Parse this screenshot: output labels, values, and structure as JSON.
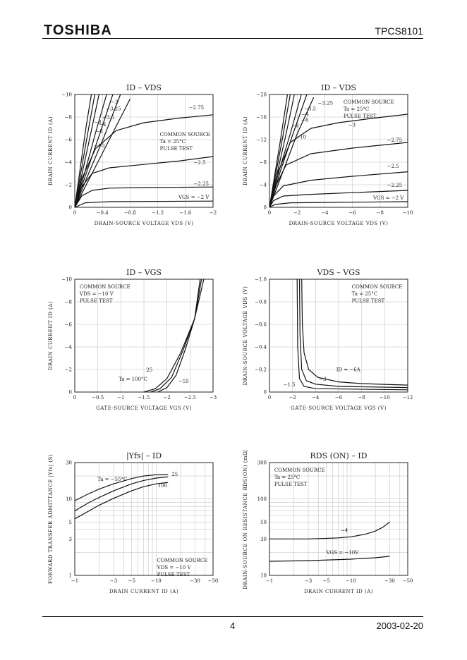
{
  "header": {
    "logo": "TOSHIBA",
    "part_number": "TPCS8101"
  },
  "footer": {
    "page_number": "4",
    "date": "2003-02-20"
  },
  "chart_data": [
    {
      "id": "c1",
      "type": "line",
      "scale": "linear",
      "title": "ID – VDS",
      "xlabel": "DRAIN-SOURCE VOLTAGE  VDS  (V)",
      "ylabel": "DRAIN CURRENT  ID  (A)",
      "xlim": [
        0,
        -2
      ],
      "ylim": [
        0,
        -10
      ],
      "xticks": [
        0,
        -0.4,
        -0.8,
        -1.2,
        -1.6,
        -2
      ],
      "xtick_labels": [
        "0",
        "−0.4",
        "−0.8",
        "−1.2",
        "−1.6",
        "−2"
      ],
      "yticks": [
        0,
        -2,
        -4,
        -6,
        -8,
        -10
      ],
      "ytick_labels": [
        "0",
        "−2",
        "−4",
        "−6",
        "−8",
        "−10"
      ],
      "notes": [
        "COMMON SOURCE",
        "Ta = 25°C",
        "PULSE TEST"
      ],
      "series": [
        {
          "name": "−10",
          "x": [
            0,
            -0.08,
            -0.16,
            -0.24
          ],
          "y": [
            0,
            -3.5,
            -7,
            -10
          ],
          "label_at": [
            -0.28,
            -5.3
          ]
        },
        {
          "name": "−8",
          "x": [
            0,
            -0.1,
            -0.2,
            -0.29
          ],
          "y": [
            0,
            -3.5,
            -7,
            -10
          ],
          "label_at": [
            -0.28,
            -7.4
          ]
        },
        {
          "name": "−6",
          "x": [
            0,
            -0.12,
            -0.24,
            -0.35
          ],
          "y": [
            0,
            -3.4,
            -6.8,
            -10
          ],
          "label_at": [
            -0.3,
            -6.6
          ]
        },
        {
          "name": "−4",
          "x": [
            0,
            -0.15,
            -0.3,
            -0.46
          ],
          "y": [
            0,
            -3.2,
            -6.6,
            -10
          ],
          "label_at": [
            -0.35,
            -7.2
          ]
        },
        {
          "name": "−3.5",
          "x": [
            0,
            -0.17,
            -0.35,
            -0.55
          ],
          "y": [
            0,
            -3.1,
            -6.3,
            -10
          ],
          "label_at": [
            -0.4,
            -7.8
          ]
        },
        {
          "name": "−3.25",
          "x": [
            0,
            -0.2,
            -0.42,
            -0.66
          ],
          "y": [
            0,
            -3,
            -6.2,
            -10
          ],
          "label_at": [
            -0.45,
            -8.6
          ]
        },
        {
          "name": "−3",
          "x": [
            0,
            -0.25,
            -0.5,
            -0.8
          ],
          "y": [
            0,
            -3,
            -6,
            -9.6
          ],
          "label_at": [
            -0.52,
            -9.2
          ]
        },
        {
          "name": "−2.75",
          "x": [
            0,
            -0.1,
            -0.3,
            -0.6,
            -1.0,
            -1.5,
            -2.0
          ],
          "y": [
            0,
            -2.5,
            -5.2,
            -6.8,
            -7.5,
            -7.9,
            -8.2
          ],
          "label_at": [
            -1.65,
            -8.7
          ]
        },
        {
          "name": "−2.5",
          "x": [
            0,
            -0.1,
            -0.25,
            -0.5,
            -1.0,
            -1.5,
            -2.0
          ],
          "y": [
            0,
            -1.8,
            -3.0,
            -3.5,
            -3.8,
            -4.1,
            -4.5
          ],
          "label_at": [
            -1.72,
            -3.8
          ]
        },
        {
          "name": "−2.25",
          "x": [
            0,
            -0.1,
            -0.25,
            -0.5,
            -1.0,
            -2.0
          ],
          "y": [
            0,
            -1.0,
            -1.5,
            -1.7,
            -1.75,
            -1.8
          ],
          "label_at": [
            -1.72,
            -1.95
          ]
        },
        {
          "name": "VGS = −2 V",
          "x": [
            0,
            -0.15,
            -0.5,
            -2.0
          ],
          "y": [
            0,
            -0.4,
            -0.5,
            -0.55
          ],
          "label_at": [
            -1.5,
            -0.75
          ]
        }
      ]
    },
    {
      "id": "c2",
      "type": "line",
      "scale": "linear",
      "title": "ID – VDS",
      "xlabel": "DRAIN-SOURCE VOLTAGE  VDS  (V)",
      "ylabel": "DRAIN CURRENT  ID  (A)",
      "xlim": [
        0,
        -10
      ],
      "ylim": [
        0,
        -20
      ],
      "xticks": [
        0,
        -2,
        -4,
        -6,
        -8,
        -10
      ],
      "xtick_labels": [
        "0",
        "−2",
        "−4",
        "−6",
        "−8",
        "−10"
      ],
      "yticks": [
        0,
        -4,
        -8,
        -12,
        -16,
        -20
      ],
      "ytick_labels": [
        "0",
        "−4",
        "−8",
        "−12",
        "−16",
        "−20"
      ],
      "notes": [
        "COMMON SOURCE",
        "Ta = 25°C",
        "PULSE TEST"
      ],
      "series": [
        {
          "name": "−10",
          "x": [
            0,
            -0.4,
            -0.8,
            -1.3
          ],
          "y": [
            0,
            -6,
            -12,
            -20
          ],
          "label_at": [
            -1.9,
            -12.2
          ]
        },
        {
          "name": "−8",
          "x": [
            0,
            -0.5,
            -1.0,
            -1.5
          ],
          "y": [
            0,
            -6.5,
            -13,
            -20
          ],
          "label_at": [
            -1.6,
            -14.2
          ]
        },
        {
          "name": "−6",
          "x": [
            0,
            -0.6,
            -1.2,
            -1.8
          ],
          "y": [
            0,
            -6.5,
            -13,
            -20
          ],
          "label_at": [
            -2.3,
            -15.2
          ]
        },
        {
          "name": "−4",
          "x": [
            0,
            -0.7,
            -1.5,
            -2.3
          ],
          "y": [
            0,
            -6.5,
            -13,
            -20
          ],
          "label_at": [
            -2.3,
            -16.2
          ]
        },
        {
          "name": "−3.5",
          "x": [
            0,
            -0.8,
            -1.7,
            -2.7
          ],
          "y": [
            0,
            -6.5,
            -13,
            -20
          ],
          "label_at": [
            -2.5,
            -17.2
          ]
        },
        {
          "name": "−3.25",
          "x": [
            0,
            -1.0,
            -2.0,
            -3.2
          ],
          "y": [
            0,
            -6.5,
            -13,
            -19.5
          ],
          "label_at": [
            -3.5,
            -18.2
          ]
        },
        {
          "name": "−3",
          "x": [
            0,
            -0.5,
            -1.5,
            -3.0,
            -5.0,
            -7.5,
            -10
          ],
          "y": [
            0,
            -5.5,
            -11.5,
            -14,
            -15,
            -15.8,
            -16.5
          ],
          "label_at": [
            -5.7,
            -14.3
          ]
        },
        {
          "name": "−2.75",
          "x": [
            0,
            -0.4,
            -1.2,
            -3.0,
            -6.0,
            -10
          ],
          "y": [
            0,
            -3.5,
            -7.5,
            -9.5,
            -10.5,
            -11.5
          ],
          "label_at": [
            -8.5,
            -11.6
          ]
        },
        {
          "name": "−2.5",
          "x": [
            0,
            -0.3,
            -1.0,
            -3.0,
            -6.0,
            -10
          ],
          "y": [
            0,
            -2.0,
            -3.8,
            -4.8,
            -5.5,
            -6.3
          ],
          "label_at": [
            -8.5,
            -7.0
          ]
        },
        {
          "name": "−2.25",
          "x": [
            0,
            -0.3,
            -1.0,
            -3.0,
            -6.0,
            -10
          ],
          "y": [
            0,
            -1.2,
            -2.0,
            -2.3,
            -2.6,
            -3.0
          ],
          "label_at": [
            -8.5,
            -3.6
          ]
        },
        {
          "name": "VGS = −2 V",
          "x": [
            0,
            -0.4,
            -1.5,
            -10
          ],
          "y": [
            0,
            -0.5,
            -0.8,
            -1.0
          ],
          "label_at": [
            -7.5,
            -1.4
          ]
        }
      ]
    },
    {
      "id": "c3",
      "type": "line",
      "scale": "linear",
      "title": "ID – VGS",
      "xlabel": "GATE-SOURCE VOLTAGE  VGS  (V)",
      "ylabel": "DRAIN CURRENT  ID  (A)",
      "xlim": [
        0,
        -3
      ],
      "ylim": [
        0,
        -10
      ],
      "xticks": [
        0,
        -0.5,
        -1,
        -1.5,
        -2,
        -2.5,
        -3
      ],
      "xtick_labels": [
        "0",
        "−0.5",
        "−1",
        "−1.5",
        "−2",
        "−2.5",
        "−3"
      ],
      "yticks": [
        0,
        -2,
        -4,
        -6,
        -8,
        -10
      ],
      "ytick_labels": [
        "0",
        "−2",
        "−4",
        "−6",
        "−8",
        "−10"
      ],
      "notes": [
        "COMMON SOURCE",
        "VDS = −10 V",
        "PULSE TEST"
      ],
      "series": [
        {
          "name": "Ta = 100°C",
          "x": [
            -1.5,
            -1.75,
            -2.0,
            -2.3,
            -2.6,
            -2.8
          ],
          "y": [
            0,
            -0.3,
            -1.2,
            -3.5,
            -6.5,
            -10
          ],
          "label_at": [
            -0.95,
            -1.0
          ]
        },
        {
          "name": "25",
          "x": [
            -1.65,
            -1.85,
            -2.1,
            -2.35,
            -2.6,
            -2.75
          ],
          "y": [
            0,
            -0.3,
            -1.3,
            -3.7,
            -6.5,
            -10
          ],
          "label_at": [
            -1.55,
            -1.8
          ]
        },
        {
          "name": "−55",
          "x": [
            -1.8,
            -2.0,
            -2.2,
            -2.4,
            -2.6,
            -2.72
          ],
          "y": [
            0,
            -0.4,
            -1.5,
            -3.8,
            -6.5,
            -10
          ],
          "label_at": [
            -2.25,
            -0.8
          ]
        }
      ]
    },
    {
      "id": "c4",
      "type": "line",
      "scale": "linear",
      "title": "VDS – VGS",
      "xlabel": "GATE-SOURCE VOLTAGE  VGS  (V)",
      "ylabel": "DRAIN-SOURCE VOLTAGE  VDS  (V)",
      "xlim": [
        0,
        -12
      ],
      "ylim": [
        0,
        -1
      ],
      "xticks": [
        0,
        -2,
        -4,
        -6,
        -8,
        -10,
        -12
      ],
      "xtick_labels": [
        "0",
        "−2",
        "−4",
        "−6",
        "−8",
        "−10",
        "−12"
      ],
      "yticks": [
        0,
        -0.2,
        -0.4,
        -0.6,
        -0.8,
        -1.0
      ],
      "ytick_labels": [
        "0",
        "−0.2",
        "−0.4",
        "−0.6",
        "−0.8",
        "−1.0"
      ],
      "notes": [
        "COMMON SOURCE",
        "Ta = 25°C",
        "PULSE TEST"
      ],
      "series": [
        {
          "name": "ID = −6A",
          "x": [
            -2.8,
            -2.85,
            -3.0,
            -3.4,
            -4.2,
            -6.0,
            -8.0,
            -10.0,
            -12.0
          ],
          "y": [
            -1.0,
            -0.6,
            -0.35,
            -0.2,
            -0.13,
            -0.09,
            -0.075,
            -0.068,
            -0.062
          ],
          "label_at": [
            -5.8,
            -0.185
          ]
        },
        {
          "name": "−3",
          "x": [
            -2.6,
            -2.65,
            -2.8,
            -3.2,
            -4.0,
            -6.0,
            -12.0
          ],
          "y": [
            -1.0,
            -0.5,
            -0.2,
            -0.1,
            -0.07,
            -0.05,
            -0.04
          ],
          "label_at": [
            -4.3,
            -0.1
          ]
        },
        {
          "name": "−1.5",
          "x": [
            -2.4,
            -2.45,
            -2.6,
            -3.0,
            -4.0,
            -12.0
          ],
          "y": [
            -1.0,
            -0.4,
            -0.12,
            -0.05,
            -0.03,
            -0.02
          ],
          "label_at": [
            -1.2,
            -0.05
          ]
        }
      ]
    },
    {
      "id": "c5",
      "type": "line",
      "scale": "log",
      "title": "|Yfs| – ID",
      "xlabel": "DRAIN CURRENT  ID  (A)",
      "ylabel": "FORWARD TRANSFER ADMITTANCE  |Yfs|  (S)",
      "xlim": [
        1,
        50
      ],
      "ylim": [
        1,
        30
      ],
      "xticks": [
        1,
        3,
        5,
        10,
        30,
        50
      ],
      "xtick_labels": [
        "−1",
        "−3",
        "−5",
        "−10",
        "−30",
        "−50"
      ],
      "yticks": [
        1,
        3,
        5,
        10,
        30
      ],
      "ytick_labels": [
        "1",
        "3",
        "5",
        "10",
        "30"
      ],
      "notes": [
        "COMMON SOURCE",
        "VDS = −10 V",
        "PULSE TEST"
      ],
      "series": [
        {
          "name": "Ta = −55°C",
          "x": [
            1,
            1.5,
            2,
            3,
            5,
            7,
            10,
            14
          ],
          "y": [
            9.5,
            11.8,
            13.5,
            15.8,
            18.5,
            20,
            20.8,
            21
          ],
          "label_at": [
            1.9,
            17.3
          ]
        },
        {
          "name": "25",
          "x": [
            1,
            1.5,
            2,
            3,
            5,
            7,
            10,
            14
          ],
          "y": [
            7.0,
            9.0,
            10.5,
            12.8,
            15.8,
            17.5,
            18.8,
            19.5
          ],
          "label_at": [
            15.5,
            20
          ]
        },
        {
          "name": "100",
          "x": [
            1,
            1.5,
            2,
            3,
            5,
            7,
            10,
            14
          ],
          "y": [
            5.5,
            7.0,
            8.3,
            10.2,
            12.8,
            14.5,
            15.8,
            16.5
          ],
          "label_at": [
            10.5,
            14.3
          ]
        }
      ]
    },
    {
      "id": "c6",
      "type": "line",
      "scale": "log",
      "title": "RDS (ON) – ID",
      "xlabel": "DRAIN CURRENT  ID  (A)",
      "ylabel": "DRAIN-SOURCE ON RESISTANCE  RDS(ON)  (mΩ)",
      "xlim": [
        1,
        50
      ],
      "ylim": [
        10,
        300
      ],
      "xticks": [
        1,
        3,
        5,
        10,
        30,
        50
      ],
      "xtick_labels": [
        "−1",
        "−3",
        "−5",
        "−10",
        "−30",
        "−50"
      ],
      "yticks": [
        10,
        30,
        50,
        100,
        300
      ],
      "ytick_labels": [
        "10",
        "30",
        "50",
        "100",
        "300"
      ],
      "notes": [
        "COMMON SOURCE",
        "Ta = 25°C",
        "PULSE TEST"
      ],
      "series": [
        {
          "name": "−4",
          "x": [
            1,
            3,
            5,
            7,
            10,
            15,
            20,
            25,
            30
          ],
          "y": [
            30,
            30,
            30.5,
            31,
            32,
            34.5,
            38,
            43,
            50
          ],
          "label_at": [
            7.5,
            37
          ]
        },
        {
          "name": "VGS = −10V",
          "x": [
            1,
            3,
            10,
            20,
            30
          ],
          "y": [
            15.3,
            15.6,
            16.3,
            17,
            17.8
          ],
          "label_at": [
            5,
            19
          ]
        }
      ]
    }
  ]
}
